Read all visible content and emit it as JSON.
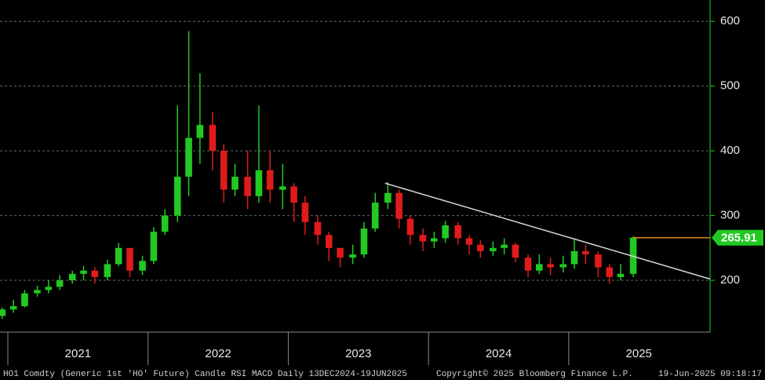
{
  "chart_data": {
    "type": "candlestick",
    "xlim": [
      2020.944,
      2026.008
    ],
    "xticks": [
      2021,
      2022,
      2023,
      2024,
      2025
    ],
    "year_labels": [
      "2021",
      "2022",
      "2023",
      "2024",
      "2025"
    ],
    "ylim": [
      120,
      633
    ],
    "yticks": [
      200,
      300,
      400,
      500,
      600
    ],
    "grid": true,
    "up_color": "#22c922",
    "down_color": "#e01b1b",
    "candles": {
      "x": [
        2020.96,
        2021.04,
        2021.12,
        2021.21,
        2021.29,
        2021.37,
        2021.46,
        2021.54,
        2021.62,
        2021.71,
        2021.79,
        2021.87,
        2021.96,
        2022.04,
        2022.12,
        2022.21,
        2022.29,
        2022.37,
        2022.46,
        2022.54,
        2022.62,
        2022.71,
        2022.79,
        2022.87,
        2022.96,
        2023.04,
        2023.12,
        2023.21,
        2023.29,
        2023.37,
        2023.46,
        2023.54,
        2023.62,
        2023.71,
        2023.79,
        2023.87,
        2023.96,
        2024.04,
        2024.12,
        2024.21,
        2024.29,
        2024.37,
        2024.46,
        2024.54,
        2024.62,
        2024.71,
        2024.79,
        2024.87,
        2024.96,
        2025.04,
        2025.12,
        2025.21,
        2025.29,
        2025.37,
        2025.46
      ],
      "open": [
        145,
        155,
        160,
        180,
        185,
        190,
        200,
        210,
        215,
        205,
        225,
        250,
        215,
        230,
        275,
        300,
        360,
        420,
        440,
        400,
        340,
        360,
        330,
        370,
        340,
        345,
        320,
        290,
        270,
        250,
        235,
        240,
        280,
        320,
        335,
        295,
        270,
        260,
        265,
        285,
        265,
        255,
        245,
        250,
        255,
        235,
        215,
        225,
        220,
        225,
        245,
        240,
        220,
        205,
        210
      ],
      "high": [
        158,
        170,
        185,
        192,
        200,
        208,
        215,
        222,
        220,
        232,
        258,
        248,
        238,
        282,
        310,
        470,
        585,
        520,
        460,
        410,
        380,
        400,
        470,
        400,
        380,
        350,
        330,
        300,
        275,
        250,
        255,
        290,
        335,
        352,
        340,
        300,
        280,
        275,
        292,
        290,
        270,
        262,
        260,
        265,
        258,
        240,
        240,
        235,
        238,
        265,
        255,
        245,
        225,
        225,
        268
      ],
      "low": [
        140,
        150,
        158,
        175,
        180,
        185,
        195,
        200,
        195,
        200,
        222,
        205,
        208,
        225,
        270,
        290,
        330,
        380,
        370,
        320,
        330,
        310,
        320,
        320,
        310,
        290,
        270,
        255,
        230,
        220,
        225,
        235,
        275,
        310,
        280,
        255,
        245,
        250,
        258,
        255,
        240,
        235,
        238,
        240,
        228,
        205,
        210,
        208,
        212,
        218,
        225,
        205,
        195,
        200,
        205
      ],
      "close": [
        155,
        160,
        180,
        185,
        190,
        200,
        210,
        215,
        205,
        225,
        250,
        215,
        230,
        275,
        300,
        360,
        420,
        440,
        400,
        340,
        360,
        330,
        370,
        340,
        345,
        320,
        290,
        270,
        250,
        235,
        240,
        280,
        320,
        335,
        295,
        270,
        260,
        265,
        285,
        265,
        255,
        245,
        250,
        255,
        235,
        215,
        225,
        220,
        225,
        245,
        240,
        220,
        205,
        210,
        265.91
      ]
    },
    "trendline": {
      "x": [
        2023.69,
        2026.008
      ],
      "y": [
        350,
        202
      ],
      "color": "#d8d8d8"
    },
    "last_price_color": "#e08a1a",
    "footer": {
      "description": "HO1 Comdty (Generic 1st 'HO' Future) Candle RSI MACD  Daily 13DEC2024-19JUN2025",
      "copyright": "Copyright© 2025 Bloomberg Finance L.P.",
      "timestamp": "19-Jun-2025 09:18:17"
    }
  }
}
